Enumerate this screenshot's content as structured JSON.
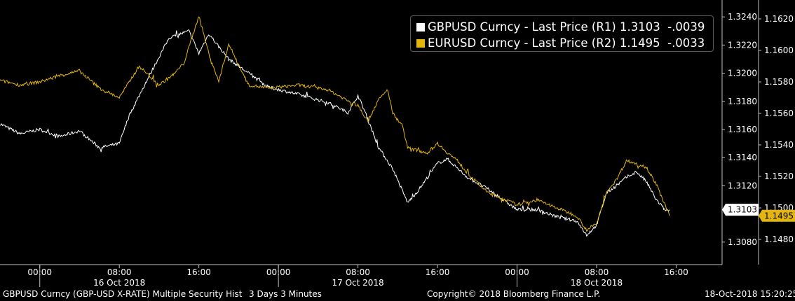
{
  "chart_data": {
    "type": "line",
    "title": "",
    "x_range": [
      "2018-10-15 20:00",
      "2018-10-18 15:20"
    ],
    "x_tick_labels": [
      "00:00",
      "08:00",
      "16:00",
      "00:00",
      "08:00",
      "16:00",
      "00:00",
      "08:00",
      "16:00"
    ],
    "x_date_labels": [
      "16 Oct 2018",
      "17 Oct 2018",
      "18 Oct 2018"
    ],
    "axes": {
      "R1": {
        "ylim": [
          1.3064,
          1.3252
        ],
        "tick_labels": [
          "1.3240",
          "1.3220",
          "1.3200",
          "1.3180",
          "1.3160",
          "1.3140",
          "1.3120",
          "1.3080"
        ]
      },
      "R2": {
        "ylim": [
          1.1464,
          1.1632
        ],
        "tick_labels": [
          "1.1620",
          "1.1600",
          "1.1580",
          "1.1560",
          "1.1540",
          "1.1520",
          "1.1500",
          "1.1480"
        ]
      }
    },
    "series": [
      {
        "name": "GBPUSD Curncy - Last Price (R1)",
        "axis": "R1",
        "color": "#ffffff",
        "last_label": "1.3103",
        "points": [
          [
            "2018-10-15 20:00",
            1.3164
          ],
          [
            "2018-10-15 22:00",
            1.3157
          ],
          [
            "2018-10-16 00:00",
            1.316
          ],
          [
            "2018-10-16 02:00",
            1.3155
          ],
          [
            "2018-10-16 04:00",
            1.3159
          ],
          [
            "2018-10-16 06:00",
            1.3147
          ],
          [
            "2018-10-16 08:00",
            1.315
          ],
          [
            "2018-10-16 09:00",
            1.317
          ],
          [
            "2018-10-16 11:00",
            1.3198
          ],
          [
            "2018-10-16 13:00",
            1.3225
          ],
          [
            "2018-10-16 15:00",
            1.323
          ],
          [
            "2018-10-16 16:00",
            1.3214
          ],
          [
            "2018-10-16 17:00",
            1.3228
          ],
          [
            "2018-10-16 19:00",
            1.321
          ],
          [
            "2018-10-16 21:00",
            1.32
          ],
          [
            "2018-10-16 23:00",
            1.319
          ],
          [
            "2018-10-17 02:00",
            1.3185
          ],
          [
            "2018-10-17 05:00",
            1.3179
          ],
          [
            "2018-10-17 07:00",
            1.3172
          ],
          [
            "2018-10-17 08:00",
            1.3184
          ],
          [
            "2018-10-17 09:00",
            1.3168
          ],
          [
            "2018-10-17 10:00",
            1.3148
          ],
          [
            "2018-10-17 11:30",
            1.3132
          ],
          [
            "2018-10-17 13:00",
            1.3108
          ],
          [
            "2018-10-17 14:00",
            1.3116
          ],
          [
            "2018-10-17 16:00",
            1.3136
          ],
          [
            "2018-10-17 17:00",
            1.3139
          ],
          [
            "2018-10-17 19:00",
            1.3126
          ],
          [
            "2018-10-17 21:00",
            1.3118
          ],
          [
            "2018-10-18 00:00",
            1.3103
          ],
          [
            "2018-10-18 02:00",
            1.3103
          ],
          [
            "2018-10-18 04:00",
            1.3098
          ],
          [
            "2018-10-18 06:00",
            1.3095
          ],
          [
            "2018-10-18 07:00",
            1.3085
          ],
          [
            "2018-10-18 08:00",
            1.3092
          ],
          [
            "2018-10-18 09:00",
            1.3115
          ],
          [
            "2018-10-18 10:00",
            1.312
          ],
          [
            "2018-10-18 11:00",
            1.3126
          ],
          [
            "2018-10-18 12:00",
            1.313
          ],
          [
            "2018-10-18 13:00",
            1.3123
          ],
          [
            "2018-10-18 14:00",
            1.311
          ],
          [
            "2018-10-18 15:00",
            1.3102
          ],
          [
            "2018-10-18 15:20",
            1.3103
          ]
        ]
      },
      {
        "name": "EURUSD Curncy - Last Price (R2)",
        "axis": "R2",
        "color": "#e3b50d",
        "last_label": "1.1495",
        "points": [
          [
            "2018-10-15 20:00",
            1.1581
          ],
          [
            "2018-10-15 22:00",
            1.1578
          ],
          [
            "2018-10-16 00:00",
            1.158
          ],
          [
            "2018-10-16 02:00",
            1.1584
          ],
          [
            "2018-10-16 04:00",
            1.1587
          ],
          [
            "2018-10-16 06:00",
            1.1576
          ],
          [
            "2018-10-16 08:00",
            1.157
          ],
          [
            "2018-10-16 10:00",
            1.159
          ],
          [
            "2018-10-16 12:00",
            1.1578
          ],
          [
            "2018-10-16 13:30",
            1.1585
          ],
          [
            "2018-10-16 14:30",
            1.1592
          ],
          [
            "2018-10-16 16:00",
            1.1622
          ],
          [
            "2018-10-16 17:00",
            1.1598
          ],
          [
            "2018-10-16 18:00",
            1.158
          ],
          [
            "2018-10-16 19:00",
            1.1604
          ],
          [
            "2018-10-16 21:00",
            1.1578
          ],
          [
            "2018-10-16 23:00",
            1.1576
          ],
          [
            "2018-10-17 02:00",
            1.1578
          ],
          [
            "2018-10-17 05:00",
            1.1575
          ],
          [
            "2018-10-17 07:00",
            1.1568
          ],
          [
            "2018-10-17 08:00",
            1.1565
          ],
          [
            "2018-10-17 09:00",
            1.1555
          ],
          [
            "2018-10-17 10:00",
            1.1568
          ],
          [
            "2018-10-17 11:00",
            1.1575
          ],
          [
            "2018-10-17 11:30",
            1.156
          ],
          [
            "2018-10-17 12:30",
            1.1552
          ],
          [
            "2018-10-17 13:00",
            1.1538
          ],
          [
            "2018-10-17 15:00",
            1.1535
          ],
          [
            "2018-10-17 16:00",
            1.1541
          ],
          [
            "2018-10-17 17:00",
            1.1535
          ],
          [
            "2018-10-17 18:00",
            1.153
          ],
          [
            "2018-10-17 19:00",
            1.1522
          ],
          [
            "2018-10-17 21:00",
            1.151
          ],
          [
            "2018-10-18 00:00",
            1.1502
          ],
          [
            "2018-10-18 02:00",
            1.1505
          ],
          [
            "2018-10-18 04:00",
            1.15
          ],
          [
            "2018-10-18 06:00",
            1.1495
          ],
          [
            "2018-10-18 07:00",
            1.1486
          ],
          [
            "2018-10-18 08:00",
            1.149
          ],
          [
            "2018-10-18 09:00",
            1.151
          ],
          [
            "2018-10-18 10:00",
            1.1518
          ],
          [
            "2018-10-18 11:00",
            1.153
          ],
          [
            "2018-10-18 12:00",
            1.1528
          ],
          [
            "2018-10-18 13:00",
            1.1526
          ],
          [
            "2018-10-18 14:00",
            1.1515
          ],
          [
            "2018-10-18 15:00",
            1.15
          ],
          [
            "2018-10-18 15:20",
            1.1495
          ]
        ]
      }
    ],
    "legend": {
      "position": "top-right",
      "rows": [
        {
          "name": "GBPUSD Curncy - Last Price (R1)",
          "last": "1.3103",
          "change": "-.0039",
          "color": "#ffffff"
        },
        {
          "name": "EURUSD Curncy - Last Price (R2)",
          "last": "1.1495",
          "change": "-.0033",
          "color": "#e3b50d"
        }
      ]
    }
  },
  "footer": {
    "left": "GBPUSD Curncy (GBP-USD X-RATE) Multiple Security Hist",
    "period": "3 Days 3 Minutes",
    "copyright": "Copyright© 2018 Bloomberg Finance L.P.",
    "timestamp": "18-Oct-2018 15:20:25"
  }
}
